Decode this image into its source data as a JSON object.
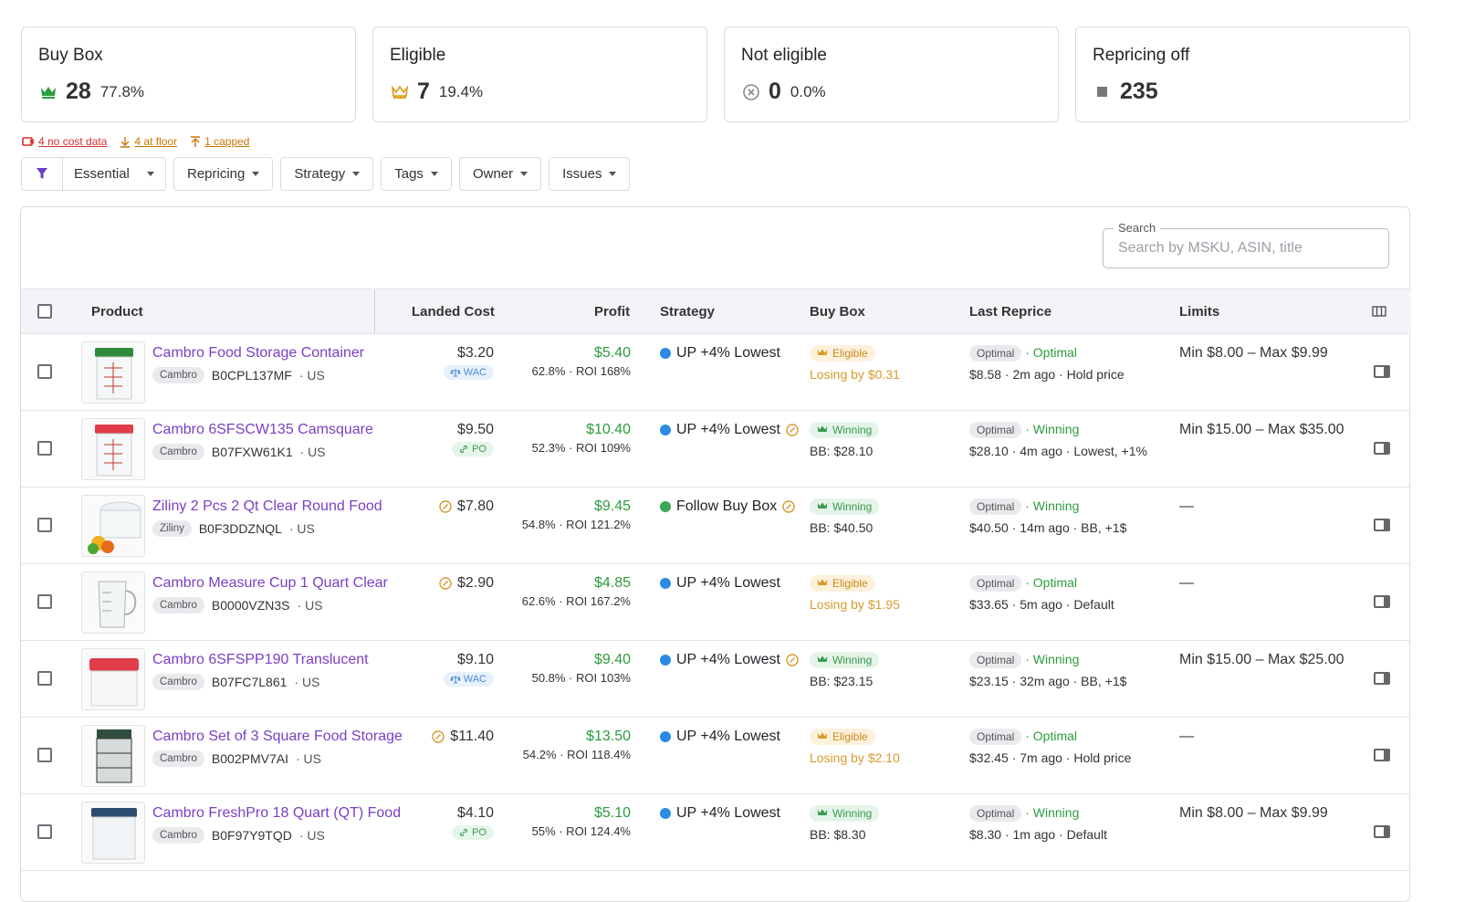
{
  "cards": [
    {
      "title": "Buy Box",
      "value": "28",
      "percent": "77.8%",
      "icon": "crown-icon",
      "color": "#2e9b3f"
    },
    {
      "title": "Eligible",
      "value": "7",
      "percent": "19.4%",
      "icon": "crown-icon",
      "color": "#e0a02a"
    },
    {
      "title": "Not eligible",
      "value": "0",
      "percent": "0.0%",
      "icon": "circle-x-icon",
      "color": "#888888"
    },
    {
      "title": "Repricing off",
      "value": "235",
      "percent": "",
      "icon": "square-icon",
      "color": "#777777"
    }
  ],
  "alerts": [
    {
      "label": "4 no cost data",
      "icon": "no-cost-icon"
    },
    {
      "label": "4 at floor",
      "icon": "arrow-down-icon"
    },
    {
      "label": "1 capped",
      "icon": "arrow-up-icon"
    }
  ],
  "filters": {
    "preset": "Essential",
    "items": [
      "Repricing",
      "Strategy",
      "Tags",
      "Owner",
      "Issues"
    ]
  },
  "search": {
    "label": "Search",
    "placeholder": "Search by MSKU, ASIN, title"
  },
  "columns": {
    "product": "Product",
    "landed_cost": "Landed Cost",
    "profit": "Profit",
    "strategy": "Strategy",
    "buy_box": "Buy Box",
    "last_reprice": "Last Reprice",
    "limits": "Limits"
  },
  "rows": [
    {
      "title": "Cambro Food Storage Container",
      "brand": "Cambro",
      "asin": "B0CPL137MF",
      "market": "· US",
      "cost": "$3.20",
      "cost_tag": "WAC",
      "cost_warn": false,
      "profit": "$5.40",
      "profit_sub": "62.8% · ROI 168%",
      "strategy": "UP +4% Lowest",
      "strategy_color": "#2b8ae6",
      "strategy_warn": false,
      "bb_chip": "Eligible",
      "bb_sub": "Losing by $0.31",
      "rp_chip": "Optimal",
      "rp_status": "· Optimal",
      "rp_sub": "$8.58 · 2m ago · Hold price",
      "limits": "Min $8.00 – Max $9.99",
      "thumb": "green-lid"
    },
    {
      "title": "Cambro 6SFSCW135 Camsquare",
      "brand": "Cambro",
      "asin": "B07FXW61K1",
      "market": "· US",
      "cost": "$9.50",
      "cost_tag": "PO",
      "cost_warn": false,
      "profit": "$10.40",
      "profit_sub": "52.3% · ROI 109%",
      "strategy": "UP +4% Lowest",
      "strategy_color": "#2b8ae6",
      "strategy_warn": true,
      "bb_chip": "Winning",
      "bb_sub": "BB: $28.10",
      "rp_chip": "Optimal",
      "rp_status": "· Winning",
      "rp_sub": "$28.10 · 4m ago · Lowest, +1%",
      "limits": "Min $15.00 – Max $35.00",
      "thumb": "red-lid"
    },
    {
      "title": "Ziliny 2 Pcs 2 Qt Clear Round Food",
      "brand": "Ziliny",
      "asin": "B0F3DDZNQL",
      "market": "· US",
      "cost": "$7.80",
      "cost_tag": "",
      "cost_warn": true,
      "profit": "$9.45",
      "profit_sub": "54.8% · ROI 121.2%",
      "strategy": "Follow Buy Box",
      "strategy_color": "#3aa655",
      "strategy_warn": true,
      "bb_chip": "Winning",
      "bb_sub": "BB: $40.50",
      "rp_chip": "Optimal",
      "rp_status": "· Winning",
      "rp_sub": "$40.50 · 14m ago · BB, +1$",
      "limits": "—",
      "thumb": "round"
    },
    {
      "title": "Cambro Measure Cup 1 Quart Clear",
      "brand": "Cambro",
      "asin": "B0000VZN3S",
      "market": "· US",
      "cost": "$2.90",
      "cost_tag": "",
      "cost_warn": true,
      "profit": "$4.85",
      "profit_sub": "62.6% · ROI 167.2%",
      "strategy": "UP +4% Lowest",
      "strategy_color": "#2b8ae6",
      "strategy_warn": false,
      "bb_chip": "Eligible",
      "bb_sub": "Losing by $1.95",
      "rp_chip": "Optimal",
      "rp_status": "· Optimal",
      "rp_sub": "$33.65 · 5m ago · Default",
      "limits": "—",
      "thumb": "cup"
    },
    {
      "title": "Cambro 6SFSPP190 Translucent",
      "brand": "Cambro",
      "asin": "B07FC7L861",
      "market": "· US",
      "cost": "$9.10",
      "cost_tag": "WAC",
      "cost_warn": false,
      "profit": "$9.40",
      "profit_sub": "50.8% · ROI 103%",
      "strategy": "UP +4% Lowest",
      "strategy_color": "#2b8ae6",
      "strategy_warn": true,
      "bb_chip": "Winning",
      "bb_sub": "BB: $23.15",
      "rp_chip": "Optimal",
      "rp_status": "· Winning",
      "rp_sub": "$23.15 · 32m ago · BB, +1$",
      "limits": "Min $15.00 – Max $25.00",
      "thumb": "red-box"
    },
    {
      "title": "Cambro Set of 3 Square Food Storage",
      "brand": "Cambro",
      "asin": "B002PMV7AI",
      "market": "· US",
      "cost": "$11.40",
      "cost_tag": "",
      "cost_warn": true,
      "profit": "$13.50",
      "profit_sub": "54.2% · ROI 118.4%",
      "strategy": "UP +4% Lowest",
      "strategy_color": "#2b8ae6",
      "strategy_warn": false,
      "bb_chip": "Eligible",
      "bb_sub": "Losing by $2.10",
      "rp_chip": "Optimal",
      "rp_status": "· Optimal",
      "rp_sub": "$32.45 · 7m ago · Hold price",
      "limits": "—",
      "thumb": "stack"
    },
    {
      "title": "Cambro FreshPro 18 Quart (QT) Food",
      "brand": "Cambro",
      "asin": "B0F97Y9TQD",
      "market": "· US",
      "cost": "$4.10",
      "cost_tag": "PO",
      "cost_warn": false,
      "profit": "$5.10",
      "profit_sub": "55% · ROI 124.4%",
      "strategy": "UP +4% Lowest",
      "strategy_color": "#2b8ae6",
      "strategy_warn": false,
      "bb_chip": "Winning",
      "bb_sub": "BB: $8.30",
      "rp_chip": "Optimal",
      "rp_status": "· Winning",
      "rp_sub": "$8.30 · 1m ago · Default",
      "limits": "Min $8.00 – Max $9.99",
      "thumb": "blue-lid"
    }
  ]
}
